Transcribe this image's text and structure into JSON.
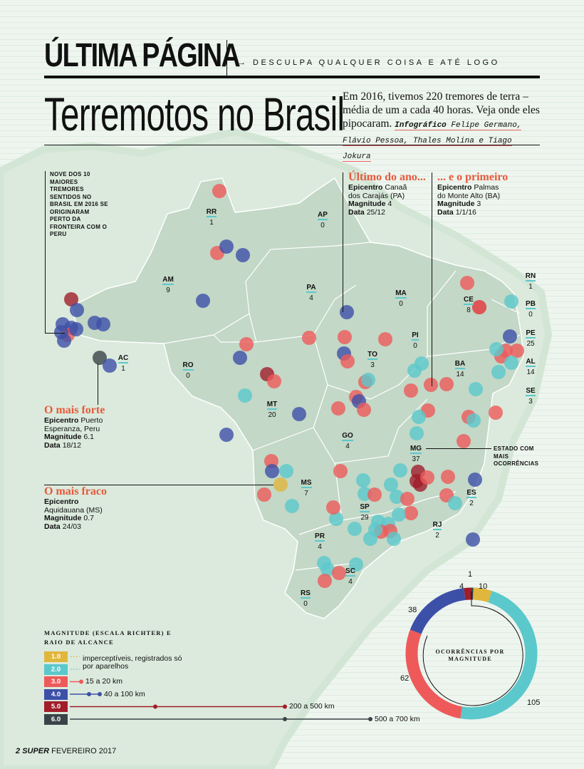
{
  "header": {
    "section": "ÚLTIMA PÁGINA",
    "tagline": "→ DESCULPA QUALQUER COISA E ATÉ LOGO",
    "title": "Terremotos no Brasil",
    "intro": "Em 2016, tivemos 220 tremores de terra – média de um a cada 40 horas. Veja onde eles pipocaram.",
    "credit_label": "Infográfico",
    "credit_names": "Felipe Germano, Flávio Pessoa, Thales Molina e Tiago Jokura"
  },
  "notes": {
    "peru": "NOVE DOS 10 MAIORES TREMORES SENTIDOS NO BRASIL EM 2016 SE ORIGINARAM PERTO DA FRONTEIRA COM O PERU",
    "mg": "ESTADO COM MAIS OCORRÊNCIAS"
  },
  "callouts": {
    "last": {
      "title": "Último do ano...",
      "epicenter_label": "Epicentro",
      "epicenter": "Canaã dos Carajás (PA)",
      "magnitude_label": "Magnitude",
      "magnitude": "4",
      "date_label": "Data",
      "date": "25/12"
    },
    "first": {
      "title": "... e o primeiro",
      "epicenter_label": "Epicentro",
      "epicenter": "Palmas do Monte Alto (BA)",
      "magnitude_label": "Magnitude",
      "magnitude": "3",
      "date_label": "Data",
      "date": "1/1/16"
    },
    "strongest": {
      "title": "O mais forte",
      "epicenter_label": "Epicentro",
      "epicenter": "Puerto Esperanza, Peru",
      "magnitude_label": "Magnitude",
      "magnitude": "6.1",
      "date_label": "Data",
      "date": "18/12"
    },
    "weakest": {
      "title": "O mais fraco",
      "epicenter_label": "Epicentro",
      "epicenter": "Aquidauana (MS)",
      "magnitude_label": "Magnitude",
      "magnitude": "0.7",
      "date_label": "Data",
      "date": "24/03"
    }
  },
  "states": [
    {
      "code": "RR",
      "count": "1"
    },
    {
      "code": "AP",
      "count": "0"
    },
    {
      "code": "AM",
      "count": "9"
    },
    {
      "code": "PA",
      "count": "4"
    },
    {
      "code": "MA",
      "count": "0"
    },
    {
      "code": "CE",
      "count": "8"
    },
    {
      "code": "RN",
      "count": "1"
    },
    {
      "code": "PB",
      "count": "0"
    },
    {
      "code": "PE",
      "count": "25"
    },
    {
      "code": "AL",
      "count": "14"
    },
    {
      "code": "SE",
      "count": "3"
    },
    {
      "code": "PI",
      "count": "0"
    },
    {
      "code": "TO",
      "count": "3"
    },
    {
      "code": "BA",
      "count": "14"
    },
    {
      "code": "AC",
      "count": "1"
    },
    {
      "code": "RO",
      "count": "0"
    },
    {
      "code": "MT",
      "count": "20"
    },
    {
      "code": "GO",
      "count": "4"
    },
    {
      "code": "MG",
      "count": "37"
    },
    {
      "code": "MS",
      "count": "7"
    },
    {
      "code": "SP",
      "count": "29"
    },
    {
      "code": "ES",
      "count": "2"
    },
    {
      "code": "RJ",
      "count": "2"
    },
    {
      "code": "PR",
      "count": "4"
    },
    {
      "code": "SC",
      "count": "4"
    },
    {
      "code": "RS",
      "count": "0"
    }
  ],
  "legend": {
    "title": "MAGNITUDE (ESCALA RICHTER) E RAIO DE ALCANCE",
    "items": [
      {
        "mag": "1.0",
        "color": "#e0b63c",
        "range": "imperceptíveis, registrados só por aparelhos"
      },
      {
        "mag": "2.0",
        "color": "#5bc8cc",
        "range": ""
      },
      {
        "mag": "3.0",
        "color": "#ee5a5a",
        "range": "15 a 20 km"
      },
      {
        "mag": "4.0",
        "color": "#3d50a8",
        "range": "40 a 100 km"
      },
      {
        "mag": "5.0",
        "color": "#a01e2a",
        "range": "200 a 500 km"
      },
      {
        "mag": "6.0",
        "color": "#3a4448",
        "range": "500 a 700 km"
      }
    ]
  },
  "donut": {
    "title": "OCORRÊNCIAS POR MAGNITUDE",
    "segments": [
      {
        "mag": "6.0",
        "value": 1,
        "color": "#3a4448"
      },
      {
        "mag": "1.0",
        "value": 10,
        "color": "#e0b63c"
      },
      {
        "mag": "2.0",
        "value": 105,
        "color": "#5bc8cc"
      },
      {
        "mag": "3.0",
        "value": 62,
        "color": "#ee5a5a"
      },
      {
        "mag": "4.0",
        "value": 38,
        "color": "#3d50a8"
      },
      {
        "mag": "5.0",
        "value": 4,
        "color": "#a01e2a"
      }
    ]
  },
  "footer": {
    "page": "2",
    "brand": "SUPER",
    "issue": "FEVEREIRO 2017"
  }
}
